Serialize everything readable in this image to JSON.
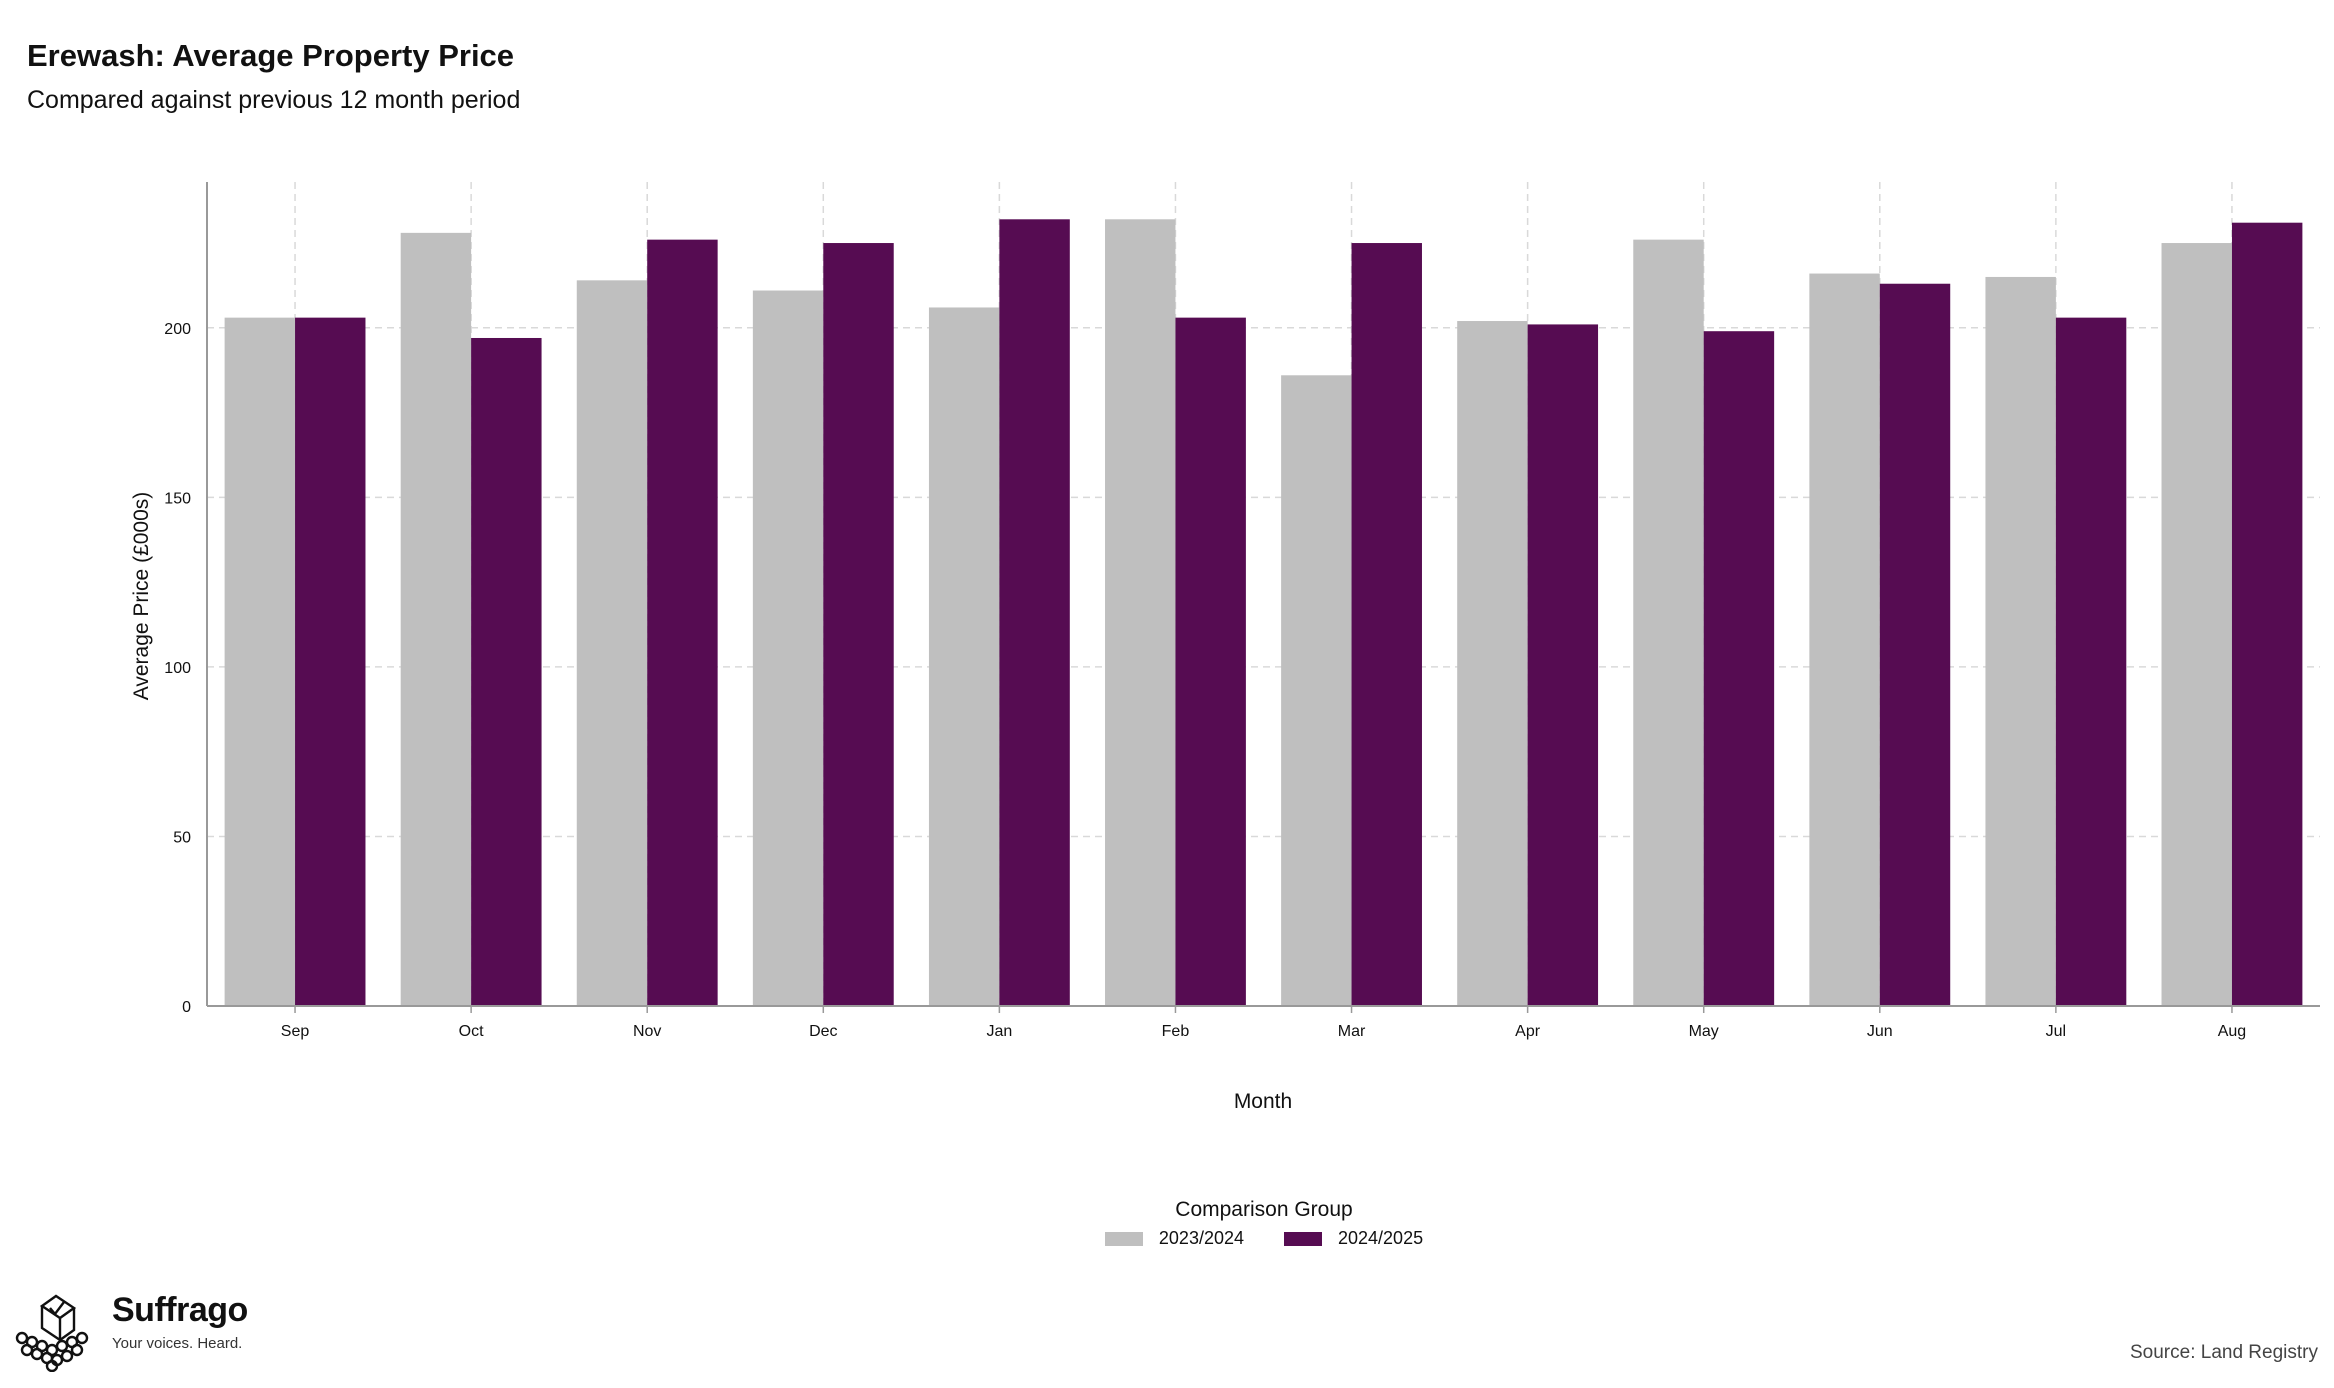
{
  "header": {
    "title": "Erewash: Average Property Price",
    "subtitle": "Compared against previous 12 month period"
  },
  "chart_data": {
    "type": "bar",
    "title": "Erewash: Average Property Price",
    "subtitle": "Compared against previous 12 month period",
    "xlabel": "Month",
    "ylabel": "Average Price (£000s)",
    "ylim": [
      0,
      243
    ],
    "yticks": [
      0,
      50,
      100,
      150,
      200
    ],
    "grid": true,
    "legend_position": "bottom",
    "legend_title": "Comparison Group",
    "categories": [
      "Sep",
      "Oct",
      "Nov",
      "Dec",
      "Jan",
      "Feb",
      "Mar",
      "Apr",
      "May",
      "Jun",
      "Jul",
      "Aug"
    ],
    "series": [
      {
        "name": "2023/2024",
        "color": "#bfbfbf",
        "values": [
          203,
          228,
          214,
          211,
          206,
          232,
          186,
          202,
          226,
          216,
          215,
          225
        ]
      },
      {
        "name": "2024/2025",
        "color": "#560c52",
        "values": [
          203,
          197,
          226,
          225,
          232,
          203,
          225,
          201,
          199,
          213,
          203,
          231
        ]
      }
    ]
  },
  "branding": {
    "name": "Suffrago",
    "tagline": "Your voices. Heard.",
    "logo_icon": "ballot-box-crowd-icon"
  },
  "source": "Source: Land Registry"
}
